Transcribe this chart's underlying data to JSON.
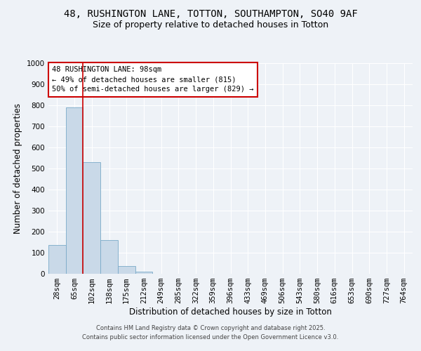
{
  "title_line1": "48, RUSHINGTON LANE, TOTTON, SOUTHAMPTON, SO40 9AF",
  "title_line2": "Size of property relative to detached houses in Totton",
  "categories": [
    "28sqm",
    "65sqm",
    "102sqm",
    "138sqm",
    "175sqm",
    "212sqm",
    "249sqm",
    "285sqm",
    "322sqm",
    "359sqm",
    "396sqm",
    "433sqm",
    "469sqm",
    "506sqm",
    "543sqm",
    "580sqm",
    "616sqm",
    "653sqm",
    "690sqm",
    "727sqm",
    "764sqm"
  ],
  "values": [
    136,
    790,
    530,
    160,
    37,
    11,
    0,
    0,
    0,
    0,
    0,
    0,
    0,
    0,
    0,
    0,
    0,
    0,
    0,
    0,
    0
  ],
  "bar_color": "#c9d9e8",
  "bar_edge_color": "#7aaac8",
  "ylabel": "Number of detached properties",
  "xlabel": "Distribution of detached houses by size in Totton",
  "annotation_title": "48 RUSHINGTON LANE: 98sqm",
  "annotation_line2": "← 49% of detached houses are smaller (815)",
  "annotation_line3": "50% of semi-detached houses are larger (829) →",
  "annotation_box_color": "#ffffff",
  "annotation_border_color": "#cc0000",
  "ylim": [
    0,
    1000
  ],
  "yticks": [
    0,
    100,
    200,
    300,
    400,
    500,
    600,
    700,
    800,
    900,
    1000
  ],
  "footer_line1": "Contains HM Land Registry data © Crown copyright and database right 2025.",
  "footer_line2": "Contains public sector information licensed under the Open Government Licence v3.0.",
  "bg_color": "#eef2f7",
  "plot_bg_color": "#eef2f7",
  "grid_color": "#ffffff",
  "title_fontsize": 10,
  "subtitle_fontsize": 9,
  "label_fontsize": 8.5,
  "tick_fontsize": 7.5,
  "footer_fontsize": 6,
  "annot_fontsize": 7.5
}
